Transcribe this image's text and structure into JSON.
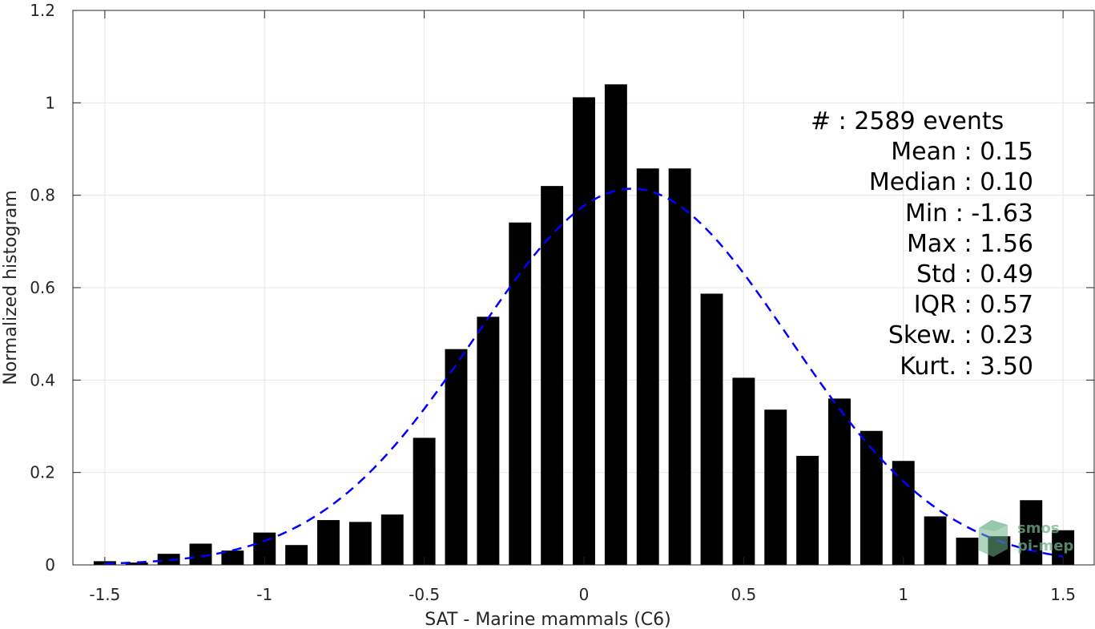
{
  "chart_data": {
    "type": "bar",
    "xlabel": "SAT - Marine mammals (C6)",
    "ylabel": "Normalized histogram",
    "xlim": [
      -1.6,
      1.6
    ],
    "ylim": [
      0,
      1.2
    ],
    "x_ticks": [
      -1.5,
      -1,
      -0.5,
      0,
      0.5,
      1,
      1.5
    ],
    "x_tick_labels": [
      "-1.5",
      "-1",
      "-0.5",
      "0",
      "0.5",
      "1",
      "1.5"
    ],
    "y_ticks": [
      0,
      0.2,
      0.4,
      0.6,
      0.8,
      1,
      1.2
    ],
    "y_tick_labels": [
      "0",
      "0.2",
      "0.4",
      "0.6",
      "0.8",
      "1",
      "1.2"
    ],
    "grid": true,
    "bar_width": 0.07,
    "bins": [
      {
        "x": -1.5,
        "y": 0.008
      },
      {
        "x": -1.4,
        "y": 0.005
      },
      {
        "x": -1.3,
        "y": 0.024
      },
      {
        "x": -1.2,
        "y": 0.046
      },
      {
        "x": -1.1,
        "y": 0.031
      },
      {
        "x": -1.0,
        "y": 0.07
      },
      {
        "x": -0.9,
        "y": 0.043
      },
      {
        "x": -0.8,
        "y": 0.097
      },
      {
        "x": -0.7,
        "y": 0.093
      },
      {
        "x": -0.6,
        "y": 0.109
      },
      {
        "x": -0.5,
        "y": 0.275
      },
      {
        "x": -0.4,
        "y": 0.467
      },
      {
        "x": -0.3,
        "y": 0.537
      },
      {
        "x": -0.2,
        "y": 0.741
      },
      {
        "x": -0.1,
        "y": 0.82
      },
      {
        "x": 0.0,
        "y": 1.012
      },
      {
        "x": 0.1,
        "y": 1.04
      },
      {
        "x": 0.2,
        "y": 0.858
      },
      {
        "x": 0.3,
        "y": 0.858
      },
      {
        "x": 0.4,
        "y": 0.587
      },
      {
        "x": 0.5,
        "y": 0.405
      },
      {
        "x": 0.6,
        "y": 0.336
      },
      {
        "x": 0.7,
        "y": 0.236
      },
      {
        "x": 0.8,
        "y": 0.36
      },
      {
        "x": 0.9,
        "y": 0.29
      },
      {
        "x": 1.0,
        "y": 0.225
      },
      {
        "x": 1.1,
        "y": 0.105
      },
      {
        "x": 1.2,
        "y": 0.059
      },
      {
        "x": 1.3,
        "y": 0.062
      },
      {
        "x": 1.4,
        "y": 0.14
      },
      {
        "x": 1.5,
        "y": 0.075
      }
    ],
    "fit_curve": {
      "type": "gaussian",
      "mean": 0.15,
      "std": 0.49,
      "x_range": [
        -1.5,
        1.5
      ],
      "color": "#0000ff",
      "style": "dashed"
    },
    "annotation": [
      "#  : 2589 events",
      "Mean : 0.15",
      "Median : 0.10",
      "Min : -1.63",
      "Max : 1.56",
      "Std : 0.49",
      "IQR : 0.57",
      "Skew. : 0.23",
      "Kurt. : 3.50"
    ],
    "bar_color": "#000000",
    "grid_color": "#e5e5e5",
    "axis_color": "#262626"
  },
  "watermark": {
    "line1": "smos",
    "line2": "pi-mep",
    "color": "#6db38a"
  }
}
